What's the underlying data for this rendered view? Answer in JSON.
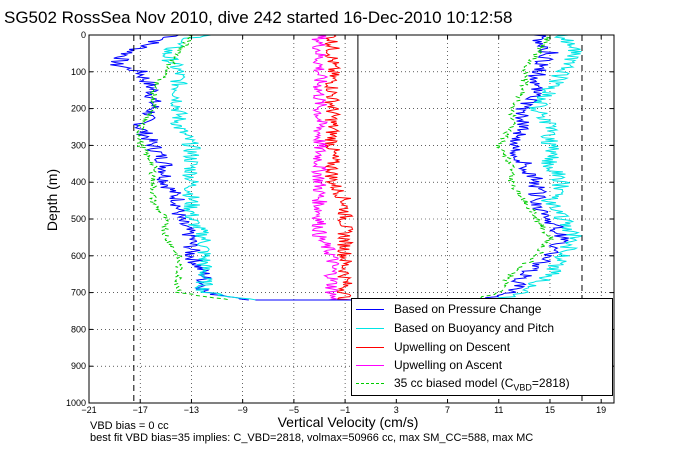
{
  "title": "SG502 RossSea Nov 2010, dive 242 started 16-Dec-2010 10:12:58",
  "footer": {
    "line1": "VBD bias = 0 cc",
    "line2": "best fit VBD bias=35 implies: C_VBD=2818, volmax=50966 cc, max SM_CC=588, max MC"
  },
  "legend": {
    "items": [
      {
        "label": "Based on Pressure Change",
        "color": "#0000ff",
        "dash": false
      },
      {
        "label": "Based on Buoyancy and Pitch",
        "color": "#00e5e5",
        "dash": false
      },
      {
        "label": "Upwelling on Descent",
        "color": "#ff0000",
        "dash": false
      },
      {
        "label": "Upwelling on Ascent",
        "color": "#ff00ff",
        "dash": false
      },
      {
        "label_prefix": "35 cc biased model (C",
        "label_sub": "VBD",
        "label_suffix": "=2818)",
        "color": "#00cc00",
        "dash": true
      }
    ]
  },
  "chart_data": {
    "type": "line",
    "title": "SG502 RossSea Nov 2010, dive 242 started 16-Dec-2010 10:12:58",
    "xlabel": "Vertical Velocity (cm/s)",
    "ylabel": "Depth (m)",
    "xlim": [
      -21,
      20
    ],
    "ylim": [
      0,
      1000
    ],
    "y_reversed": true,
    "xticks": [
      -21,
      -17,
      -13,
      -9,
      -5,
      -1,
      3,
      7,
      11,
      15,
      19
    ],
    "yticks": [
      0,
      100,
      200,
      300,
      400,
      500,
      600,
      700,
      800,
      900,
      1000
    ],
    "grid": true,
    "legend_position": "bottom-right",
    "vertical_dashed_lines": [
      -17.5,
      17.5
    ],
    "vertical_solid_lines": [
      0
    ],
    "series": [
      {
        "name": "Based on Pressure Change",
        "color": "#0000ff",
        "dash": false,
        "descent": {
          "depth": [
            0,
            20,
            50,
            80,
            100,
            150,
            200,
            250,
            300,
            350,
            400,
            450,
            500,
            550,
            600,
            650,
            700,
            720
          ],
          "value": [
            -14,
            -16,
            -18,
            -19,
            -17,
            -16,
            -16,
            -17,
            -16,
            -15,
            -15,
            -14,
            -14,
            -13,
            -13,
            -12,
            -12,
            -8
          ]
        },
        "ascent": {
          "depth": [
            720,
            700,
            650,
            600,
            550,
            500,
            450,
            400,
            350,
            300,
            250,
            200,
            150,
            100,
            50,
            0
          ],
          "value": [
            10,
            12,
            13,
            15,
            16,
            15,
            14,
            14,
            13,
            12,
            13,
            13,
            14,
            14,
            15,
            14
          ]
        }
      },
      {
        "name": "Based on Buoyancy and Pitch",
        "color": "#00e5e5",
        "dash": false,
        "descent": {
          "depth": [
            0,
            20,
            50,
            100,
            150,
            200,
            250,
            300,
            350,
            400,
            450,
            500,
            550,
            600,
            650,
            700,
            720
          ],
          "value": [
            -12,
            -14,
            -15,
            -14,
            -14,
            -14,
            -14,
            -13,
            -13,
            -13,
            -13,
            -13,
            -12,
            -12,
            -12,
            -12,
            -8
          ]
        },
        "ascent": {
          "depth": [
            720,
            700,
            650,
            600,
            550,
            500,
            450,
            400,
            350,
            300,
            250,
            200,
            150,
            100,
            50,
            0
          ],
          "value": [
            11,
            13,
            15,
            16,
            17,
            16,
            15,
            16,
            15,
            15,
            15,
            14,
            15,
            16,
            17,
            16
          ]
        }
      },
      {
        "name": "Upwelling on Descent",
        "color": "#ff0000",
        "dash": false,
        "depth": [
          0,
          50,
          100,
          150,
          200,
          250,
          300,
          350,
          400,
          450,
          500,
          550,
          600,
          650,
          700,
          720
        ],
        "value": [
          -2,
          -2,
          -2,
          -2,
          -2,
          -2,
          -2,
          -2,
          -2,
          -1,
          -1,
          -1,
          -1,
          -1,
          -1,
          -1
        ]
      },
      {
        "name": "Upwelling on Ascent",
        "color": "#ff00ff",
        "dash": false,
        "depth": [
          0,
          50,
          100,
          150,
          200,
          250,
          300,
          350,
          400,
          450,
          500,
          550,
          600,
          650,
          700,
          720
        ],
        "value": [
          -3,
          -3,
          -3,
          -3,
          -3,
          -3,
          -3,
          -3,
          -3,
          -3,
          -3,
          -3,
          -2,
          -2,
          -2,
          -2
        ]
      },
      {
        "name": "35 cc biased model (CVBD=2818)",
        "color": "#00cc00",
        "dash": true,
        "descent": {
          "depth": [
            0,
            50,
            100,
            150,
            200,
            250,
            300,
            350,
            400,
            450,
            500,
            550,
            600,
            650,
            700,
            720
          ],
          "value": [
            -13,
            -14,
            -15,
            -16,
            -16,
            -17,
            -17,
            -16,
            -16,
            -16,
            -15,
            -15,
            -14,
            -14,
            -14,
            -10
          ]
        },
        "ascent": {
          "depth": [
            720,
            700,
            650,
            600,
            550,
            500,
            450,
            400,
            350,
            300,
            250,
            200,
            150,
            100,
            50,
            0
          ],
          "value": [
            9,
            11,
            12,
            14,
            15,
            14,
            13,
            12,
            12,
            11,
            12,
            12,
            13,
            13,
            14,
            15
          ]
        }
      }
    ]
  }
}
